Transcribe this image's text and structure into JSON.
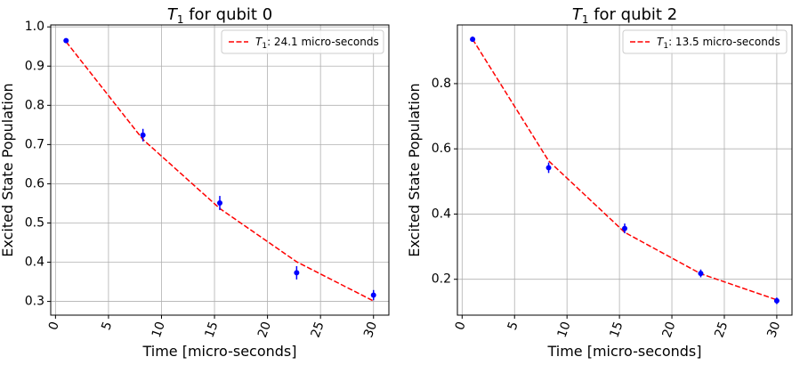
{
  "chart_data": [
    {
      "type": "scatter",
      "title_symbol": "T",
      "title_sub": "1",
      "title_rest": " for qubit 0",
      "xlabel": "Time [micro-seconds]",
      "ylabel": "Excited State Population",
      "xlim": [
        -0.45,
        31.45
      ],
      "ylim": [
        0.265,
        1.005
      ],
      "xticks": [
        0,
        5,
        10,
        15,
        20,
        25,
        30
      ],
      "yticks": [
        0.3,
        0.4,
        0.5,
        0.6,
        0.7,
        0.8,
        0.9,
        1.0
      ],
      "ytick_labels": [
        "0.3",
        "0.4",
        "0.5",
        "0.6",
        "0.7",
        "0.8",
        "0.9",
        "1.0"
      ],
      "xtick_rotation": -70,
      "grid": true,
      "legend_position": "top-right",
      "point_color": "#0000ff",
      "fit_color": "#ff0000",
      "points": [
        {
          "x": 1.0,
          "y": 0.965,
          "err": 0.006
        },
        {
          "x": 8.25,
          "y": 0.724,
          "err": 0.016
        },
        {
          "x": 15.5,
          "y": 0.551,
          "err": 0.018
        },
        {
          "x": 22.75,
          "y": 0.373,
          "err": 0.017
        },
        {
          "x": 30.0,
          "y": 0.316,
          "err": 0.013
        }
      ],
      "fit": {
        "x": [
          1.0,
          8.25,
          15.5,
          22.75,
          30.0
        ],
        "y": [
          0.962,
          0.713,
          0.537,
          0.401,
          0.301
        ]
      },
      "legend": {
        "symbol": "T",
        "sub": "1",
        "text": ": 24.1 micro-seconds"
      }
    },
    {
      "type": "scatter",
      "title_symbol": "T",
      "title_sub": "1",
      "title_rest": " for qubit 2",
      "xlabel": "Time [micro-seconds]",
      "ylabel": "Excited State Population",
      "xlim": [
        -0.45,
        31.45
      ],
      "ylim": [
        0.09,
        0.98
      ],
      "xticks": [
        0,
        5,
        10,
        15,
        20,
        25,
        30
      ],
      "yticks": [
        0.2,
        0.4,
        0.6,
        0.8
      ],
      "ytick_labels": [
        "0.2",
        "0.4",
        "0.6",
        "0.8"
      ],
      "xtick_rotation": -70,
      "grid": true,
      "legend_position": "top-right",
      "point_color": "#0000ff",
      "fit_color": "#ff0000",
      "points": [
        {
          "x": 1.0,
          "y": 0.936,
          "err": 0.008
        },
        {
          "x": 8.25,
          "y": 0.542,
          "err": 0.016
        },
        {
          "x": 15.5,
          "y": 0.356,
          "err": 0.015
        },
        {
          "x": 22.75,
          "y": 0.218,
          "err": 0.012
        },
        {
          "x": 30.0,
          "y": 0.134,
          "err": 0.01
        }
      ],
      "fit": {
        "x": [
          1.0,
          8.25,
          15.5,
          22.75,
          30.0
        ],
        "y": [
          0.936,
          0.563,
          0.344,
          0.217,
          0.137
        ]
      },
      "legend": {
        "symbol": "T",
        "sub": "1",
        "text": ": 13.5 micro-seconds"
      }
    }
  ]
}
